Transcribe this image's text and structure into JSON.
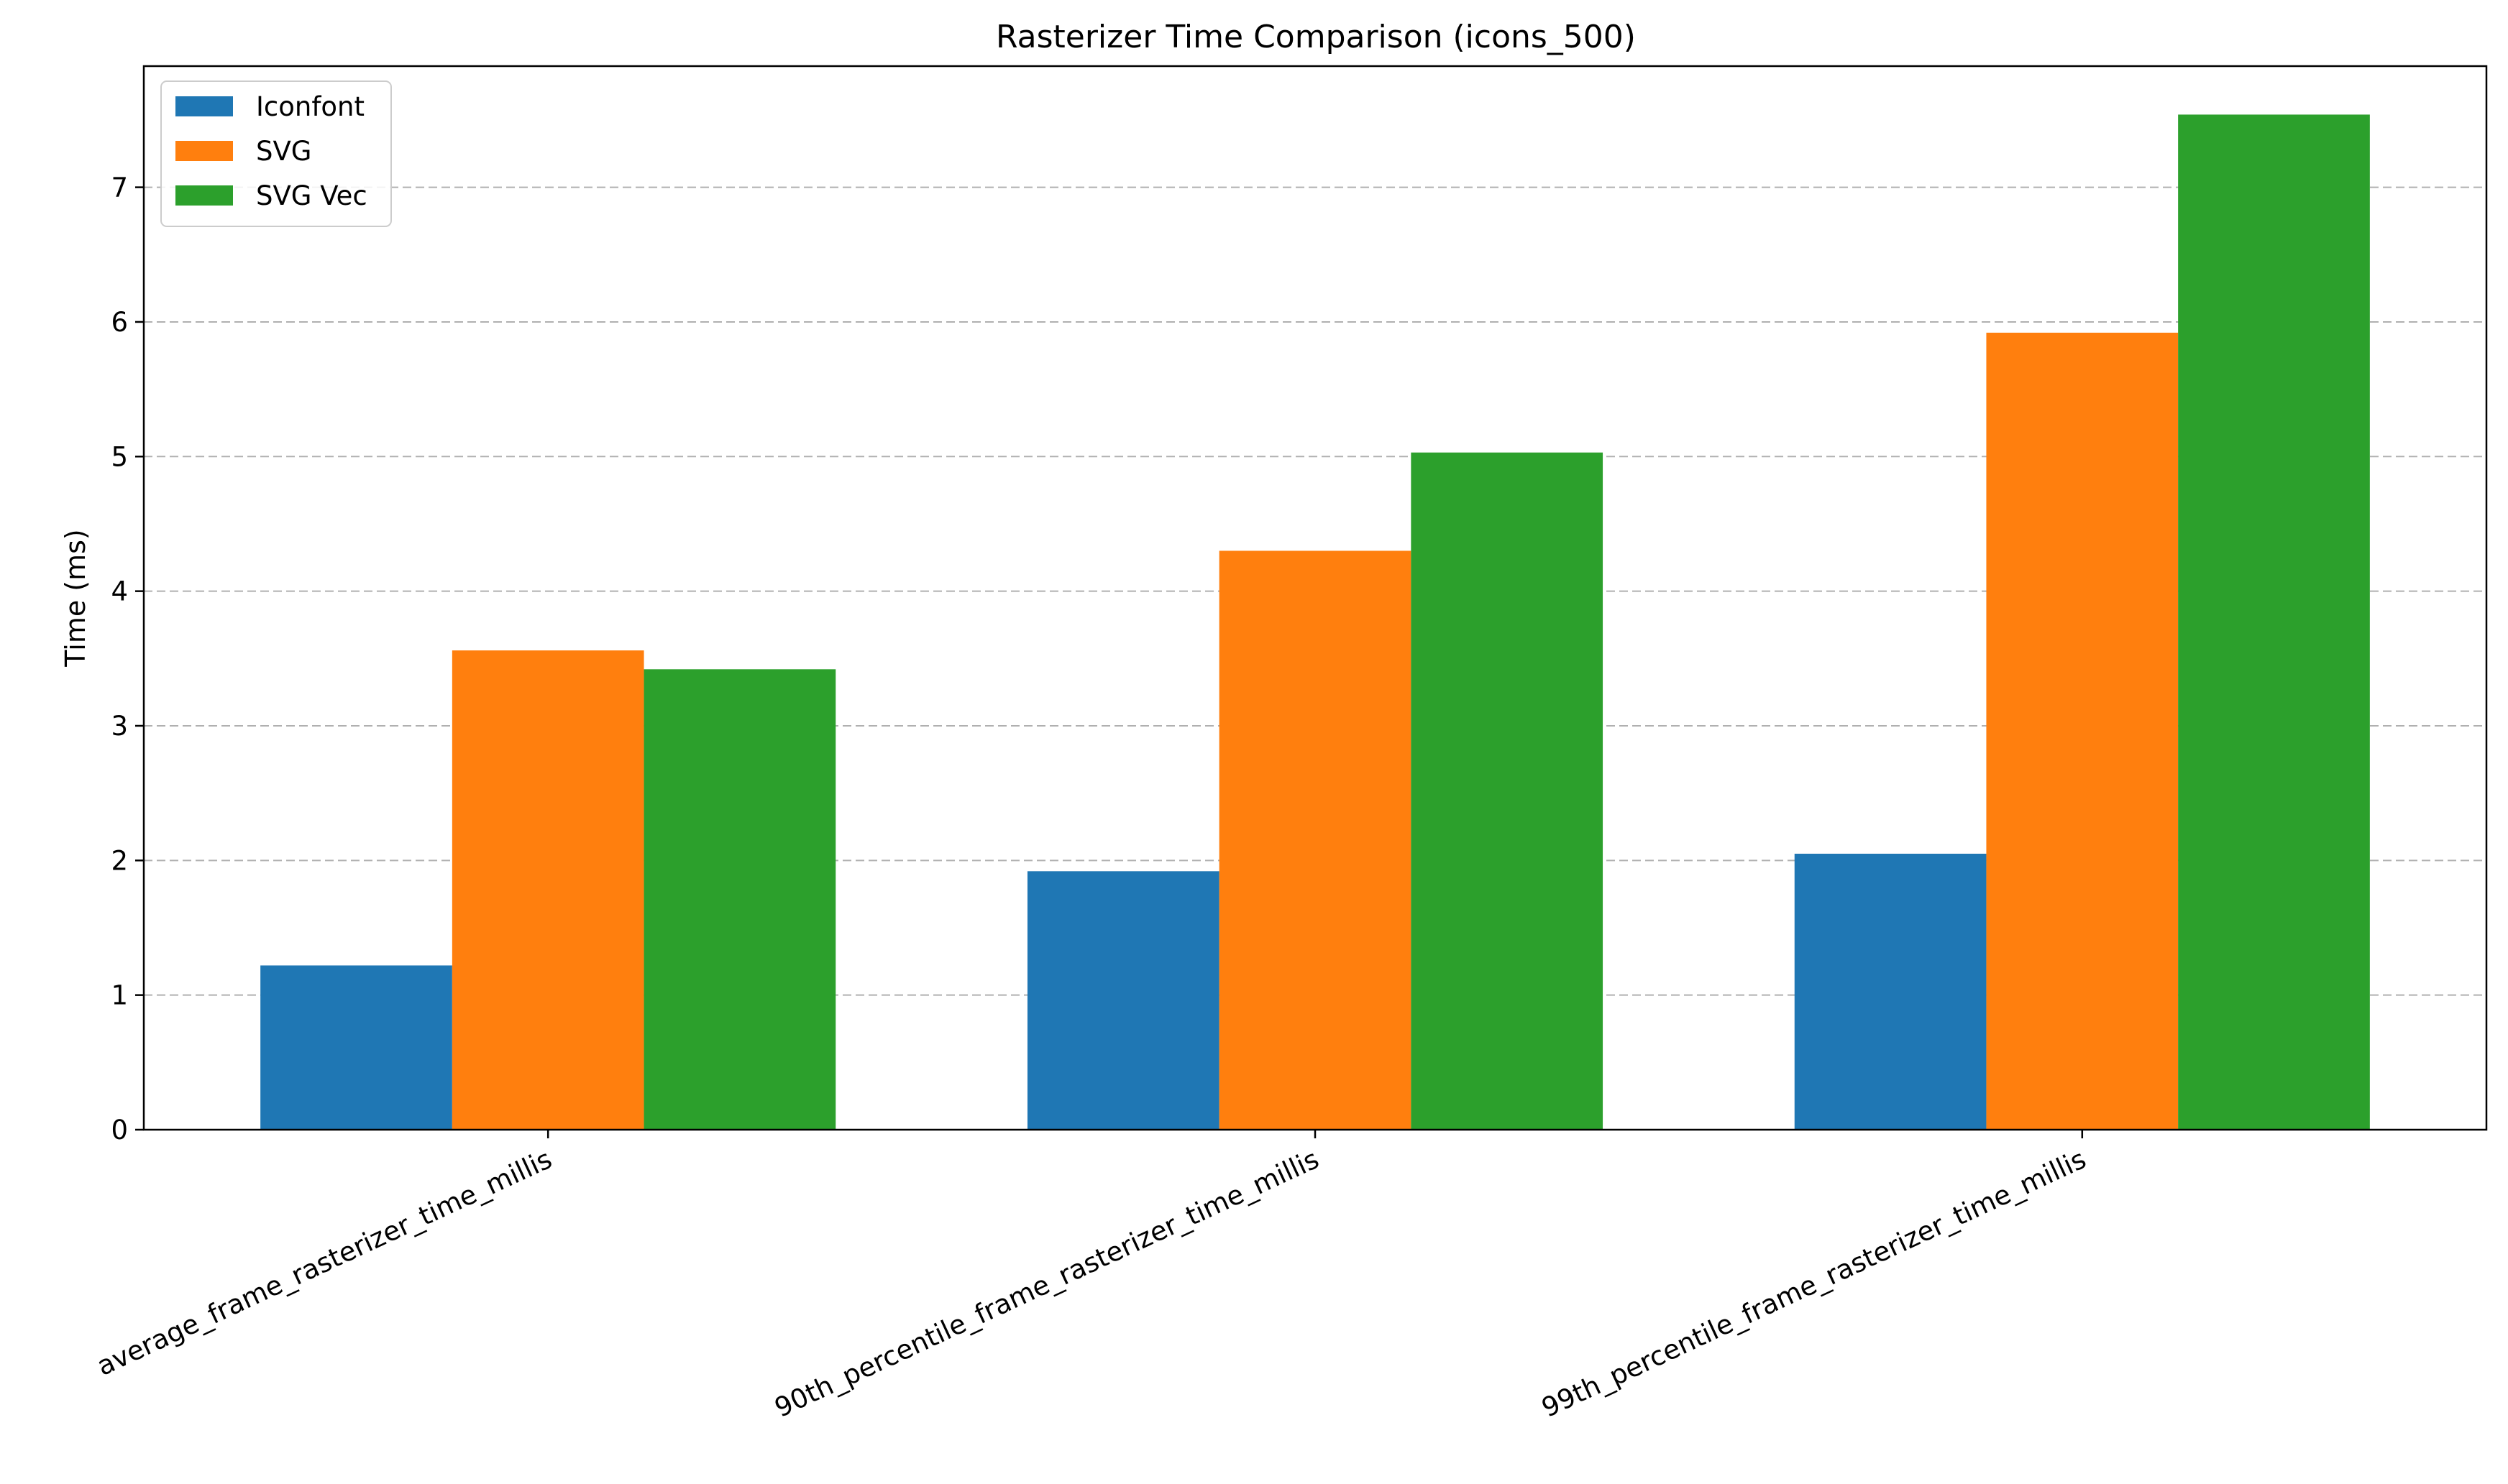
{
  "chart_data": {
    "type": "bar",
    "title": "Rasterizer Time Comparison (icons_500)",
    "xlabel": "",
    "ylabel": "Time (ms)",
    "ylim": [
      0,
      7.9
    ],
    "yticks": [
      0,
      1,
      2,
      3,
      4,
      5,
      6,
      7
    ],
    "grid": "y-dashed",
    "legend_position": "top-left",
    "categories": [
      "average_frame_rasterizer_time_millis",
      "90th_percentile_frame_rasterizer_time_millis",
      "99th_percentile_frame_rasterizer_time_millis"
    ],
    "series": [
      {
        "name": "Iconfont",
        "color": "#1f77b4",
        "values": [
          1.22,
          1.92,
          2.05
        ]
      },
      {
        "name": "SVG",
        "color": "#ff7f0e",
        "values": [
          3.56,
          4.3,
          5.92
        ]
      },
      {
        "name": "SVG Vec",
        "color": "#2ca02c",
        "values": [
          3.42,
          5.03,
          7.54
        ]
      }
    ]
  }
}
